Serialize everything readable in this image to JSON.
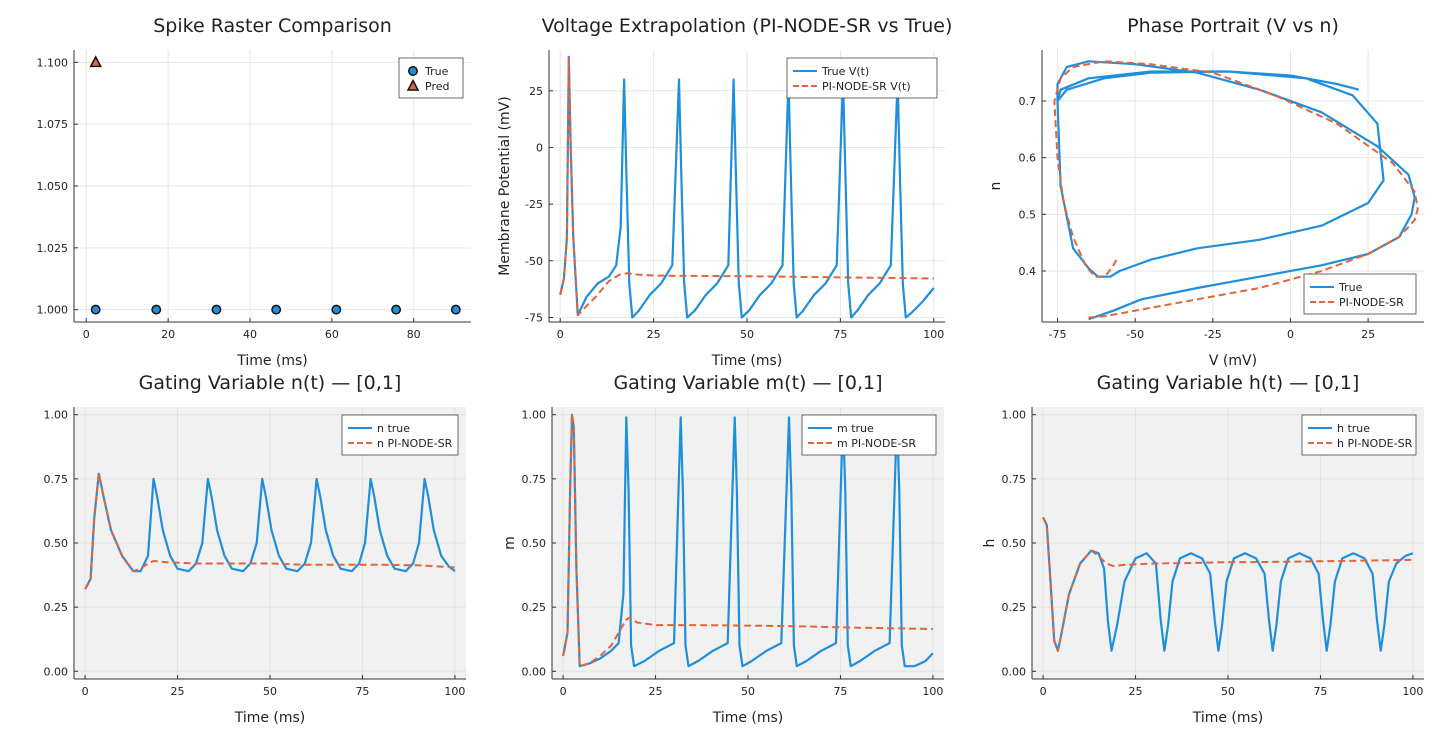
{
  "colors": {
    "true": "#1f8fdc",
    "pred": "#e0643e",
    "shade": "#f1f1f1",
    "grid": "#e6e6e6",
    "axis": "#333333"
  },
  "chart_data": [
    {
      "id": "raster",
      "type": "scatter",
      "title": "Spike Raster Comparison",
      "xlabel": "Time (ms)",
      "ylabel": "",
      "xlim": [
        -3,
        94
      ],
      "ylim": [
        0.995,
        1.105
      ],
      "xticks": [
        0,
        20,
        40,
        60,
        80
      ],
      "yticks": [
        1.0,
        1.025,
        1.05,
        1.075,
        1.1
      ],
      "ytick_labels": [
        "1.000",
        "1.025",
        "1.050",
        "1.075",
        "1.100"
      ],
      "grid": true,
      "legend": "top-right",
      "series": [
        {
          "name": "True",
          "marker": "circle",
          "color": "true",
          "x": [
            2.3,
            17.1,
            31.8,
            46.4,
            61.1,
            75.7,
            90.3
          ],
          "y": [
            1,
            1,
            1,
            1,
            1,
            1,
            1
          ]
        },
        {
          "name": "Pred",
          "marker": "triangle",
          "color": "pred",
          "x": [
            2.3
          ],
          "y": [
            1.1
          ]
        }
      ]
    },
    {
      "id": "voltage",
      "type": "line",
      "title": "Voltage Extrapolation (PI-NODE-SR vs True)",
      "xlabel": "Time (ms)",
      "ylabel": "Membrane Potential (mV)",
      "xlim": [
        -3,
        103
      ],
      "ylim": [
        -77,
        43
      ],
      "xticks": [
        0,
        25,
        50,
        75,
        100
      ],
      "yticks": [
        -75,
        -50,
        -25,
        0,
        25
      ],
      "grid": true,
      "legend": "top-right",
      "series": [
        {
          "name": "True V(t)",
          "style": "solid",
          "color": "true",
          "x": [
            0,
            1,
            1.8,
            2.3,
            2.8,
            3.5,
            4.7,
            7,
            10,
            13,
            15,
            16.2,
            17.1,
            17.7,
            18.5,
            19.3,
            21,
            24,
            27,
            30,
            31.8,
            32.4,
            33.2,
            34,
            36,
            39,
            42,
            45,
            46.4,
            47,
            47.8,
            48.6,
            50.5,
            53.5,
            56.5,
            59.5,
            61.1,
            61.7,
            62.5,
            63.3,
            65,
            68,
            71,
            74,
            75.7,
            76.3,
            77.1,
            77.9,
            79.5,
            82.5,
            85.5,
            88.5,
            90.3,
            90.9,
            91.7,
            92.5,
            94,
            97,
            100
          ],
          "y": [
            -65,
            -58,
            -40,
            40,
            0,
            -40,
            -74,
            -66,
            -60,
            -57,
            -52,
            -35,
            30,
            -10,
            -60,
            -75,
            -72,
            -65,
            -60,
            -52,
            30,
            -10,
            -60,
            -75,
            -72,
            -65,
            -60,
            -52,
            30,
            -10,
            -60,
            -75,
            -72,
            -65,
            -60,
            -52,
            30,
            -10,
            -60,
            -75,
            -72,
            -65,
            -60,
            -52,
            30,
            -10,
            -60,
            -75,
            -72,
            -65,
            -60,
            -52,
            30,
            -10,
            -60,
            -75,
            -73,
            -68,
            -62
          ]
        },
        {
          "name": "PI-NODE-SR V(t)",
          "style": "dashed",
          "color": "pred",
          "x": [
            0,
            1,
            1.8,
            2.3,
            2.8,
            3.5,
            4.7,
            7,
            10,
            13,
            16,
            18,
            20,
            25,
            30,
            40,
            50,
            60,
            70,
            80,
            90,
            100
          ],
          "y": [
            -65,
            -58,
            -40,
            40,
            0,
            -40,
            -74,
            -70,
            -65,
            -59,
            -56,
            -55.5,
            -56,
            -56.5,
            -56.6,
            -56.7,
            -56.8,
            -57,
            -57.2,
            -57.4,
            -57.6,
            -57.8
          ]
        }
      ]
    },
    {
      "id": "phase",
      "type": "line",
      "title": "Phase Portrait (V vs n)",
      "xlabel": "V (mV)",
      "ylabel": "n",
      "xlim": [
        -80,
        43
      ],
      "ylim": [
        0.31,
        0.79
      ],
      "xticks": [
        -75,
        -50,
        -25,
        0,
        25
      ],
      "yticks": [
        0.4,
        0.5,
        0.6,
        0.7
      ],
      "grid": true,
      "legend": "bottom-right",
      "series": [
        {
          "name": "True",
          "style": "solid",
          "color": "true",
          "x": [
            -65,
            -57,
            -48,
            -30,
            -10,
            10,
            25,
            35,
            39,
            40,
            38,
            28,
            10,
            -10,
            -30,
            -50,
            -65,
            -72,
            -75,
            -75,
            -72,
            -60,
            -45,
            -20,
            5,
            20,
            28,
            30,
            25,
            10,
            -10,
            -30,
            -45,
            -55,
            -58,
            -60,
            -62,
            -65,
            -70,
            -74,
            -75,
            -74,
            -65,
            -45,
            -20,
            0,
            15,
            22
          ],
          "y": [
            0.315,
            0.33,
            0.35,
            0.37,
            0.39,
            0.41,
            0.43,
            0.46,
            0.5,
            0.53,
            0.57,
            0.62,
            0.68,
            0.72,
            0.75,
            0.765,
            0.77,
            0.76,
            0.73,
            0.7,
            0.72,
            0.74,
            0.75,
            0.752,
            0.74,
            0.71,
            0.66,
            0.56,
            0.52,
            0.48,
            0.455,
            0.44,
            0.42,
            0.4,
            0.39,
            0.39,
            0.39,
            0.405,
            0.44,
            0.55,
            0.7,
            0.72,
            0.74,
            0.752,
            0.752,
            0.745,
            0.73,
            0.72
          ]
        },
        {
          "name": "PI-NODE-SR",
          "style": "dashed",
          "color": "pred",
          "x": [
            -65,
            -60,
            -50,
            -30,
            -10,
            10,
            25,
            35,
            40,
            41,
            40,
            33,
            15,
            -5,
            -25,
            -45,
            -60,
            -70,
            -74,
            -76,
            -75,
            -73,
            -70,
            -66,
            -63,
            -61,
            -59,
            -57,
            -55.5
          ],
          "y": [
            0.318,
            0.32,
            0.33,
            0.35,
            0.37,
            0.4,
            0.43,
            0.46,
            0.49,
            0.51,
            0.54,
            0.59,
            0.66,
            0.71,
            0.75,
            0.765,
            0.77,
            0.76,
            0.74,
            0.7,
            0.6,
            0.52,
            0.46,
            0.41,
            0.39,
            0.39,
            0.395,
            0.41,
            0.425
          ]
        }
      ]
    },
    {
      "id": "gate_n",
      "type": "line",
      "title": "Gating Variable n(t) — [0,1]",
      "xlabel": "Time (ms)",
      "ylabel": "",
      "xlim": [
        -3,
        103
      ],
      "ylim": [
        -0.03,
        1.03
      ],
      "xticks": [
        0,
        25,
        50,
        75,
        100
      ],
      "yticks": [
        0,
        0.25,
        0.5,
        0.75,
        1.0
      ],
      "ytick_labels": [
        "0.00",
        "0.25",
        "0.50",
        "0.75",
        "1.00"
      ],
      "grid": true,
      "shaded": true,
      "legend": "top-right",
      "series": [
        {
          "name": "n true",
          "style": "solid",
          "color": "true",
          "x": [
            0,
            1.5,
            2.5,
            3.7,
            5,
            7,
            10,
            13,
            15,
            17,
            18.5,
            19.5,
            21,
            23,
            25,
            28,
            30,
            31.7,
            33.2,
            34.2,
            35.7,
            37.7,
            39.7,
            42.7,
            44.7,
            46.4,
            47.9,
            48.9,
            50.4,
            52.4,
            54.4,
            57.4,
            59.4,
            61.1,
            62.6,
            63.6,
            65.1,
            67.1,
            69.1,
            72.1,
            74.1,
            75.7,
            77.2,
            78.2,
            79.7,
            81.7,
            83.7,
            86.7,
            88.7,
            90.3,
            91.8,
            92.8,
            94.3,
            96.3,
            98.3,
            100
          ],
          "y": [
            0.32,
            0.36,
            0.6,
            0.77,
            0.68,
            0.55,
            0.45,
            0.39,
            0.39,
            0.45,
            0.75,
            0.68,
            0.55,
            0.45,
            0.4,
            0.39,
            0.42,
            0.5,
            0.75,
            0.68,
            0.55,
            0.45,
            0.4,
            0.39,
            0.42,
            0.5,
            0.75,
            0.68,
            0.55,
            0.45,
            0.4,
            0.39,
            0.42,
            0.5,
            0.75,
            0.68,
            0.55,
            0.45,
            0.4,
            0.39,
            0.42,
            0.5,
            0.75,
            0.68,
            0.55,
            0.45,
            0.4,
            0.39,
            0.42,
            0.5,
            0.75,
            0.68,
            0.55,
            0.45,
            0.41,
            0.39
          ]
        },
        {
          "name": "n PI-NODE-SR",
          "style": "dashed",
          "color": "pred",
          "x": [
            0,
            1.5,
            2.5,
            3.7,
            5,
            7,
            10,
            13,
            15,
            17,
            18.5,
            22,
            30,
            40,
            50,
            60,
            70,
            80,
            90,
            100
          ],
          "y": [
            0.32,
            0.36,
            0.6,
            0.77,
            0.68,
            0.55,
            0.45,
            0.39,
            0.4,
            0.42,
            0.43,
            0.425,
            0.42,
            0.42,
            0.42,
            0.415,
            0.415,
            0.415,
            0.413,
            0.405
          ]
        }
      ]
    },
    {
      "id": "gate_m",
      "type": "line",
      "title": "Gating Variable m(t) — [0,1]",
      "xlabel": "Time (ms)",
      "ylabel": "m",
      "xlim": [
        -3,
        103
      ],
      "ylim": [
        -0.03,
        1.03
      ],
      "xticks": [
        0,
        25,
        50,
        75,
        100
      ],
      "yticks": [
        0,
        0.25,
        0.5,
        0.75,
        1.0
      ],
      "ytick_labels": [
        "0.00",
        "0.25",
        "0.50",
        "0.75",
        "1.00"
      ],
      "grid": true,
      "shaded": true,
      "legend": "top-right",
      "series": [
        {
          "name": "m true",
          "style": "solid",
          "color": "true",
          "x": [
            0,
            1.2,
            1.9,
            2.4,
            2.9,
            3.6,
            4.5,
            7,
            10,
            13,
            15,
            16.3,
            17.1,
            17.7,
            18.4,
            19.2,
            22,
            26,
            30,
            31.8,
            32.4,
            33.1,
            33.9,
            36.5,
            40.5,
            44.5,
            46.4,
            47,
            47.7,
            48.5,
            51,
            55,
            59,
            61.1,
            61.7,
            62.4,
            63.2,
            65.8,
            69.8,
            73.8,
            75.7,
            76.3,
            77,
            77.8,
            80.3,
            84.3,
            88.3,
            90.3,
            90.9,
            91.6,
            92.4,
            95,
            98,
            100
          ],
          "y": [
            0.06,
            0.15,
            0.7,
            1.0,
            0.95,
            0.4,
            0.02,
            0.03,
            0.05,
            0.08,
            0.11,
            0.3,
            0.99,
            0.7,
            0.1,
            0.02,
            0.04,
            0.08,
            0.11,
            0.99,
            0.7,
            0.1,
            0.02,
            0.04,
            0.08,
            0.11,
            0.99,
            0.7,
            0.1,
            0.02,
            0.04,
            0.08,
            0.11,
            0.99,
            0.7,
            0.1,
            0.02,
            0.04,
            0.08,
            0.11,
            0.99,
            0.7,
            0.1,
            0.02,
            0.04,
            0.08,
            0.11,
            0.99,
            0.7,
            0.1,
            0.02,
            0.02,
            0.04,
            0.07
          ]
        },
        {
          "name": "m PI-NODE-SR",
          "style": "dashed",
          "color": "pred",
          "x": [
            0,
            1.2,
            1.9,
            2.4,
            2.9,
            3.6,
            4.5,
            7,
            10,
            13,
            15,
            17,
            18,
            20,
            25,
            35,
            50,
            65,
            80,
            100
          ],
          "y": [
            0.06,
            0.15,
            0.7,
            1.0,
            0.95,
            0.4,
            0.02,
            0.03,
            0.06,
            0.1,
            0.15,
            0.2,
            0.21,
            0.19,
            0.18,
            0.18,
            0.178,
            0.175,
            0.17,
            0.165
          ]
        }
      ]
    },
    {
      "id": "gate_h",
      "type": "line",
      "title": "Gating Variable h(t) — [0,1]",
      "xlabel": "Time (ms)",
      "ylabel": "h",
      "xlim": [
        -3,
        103
      ],
      "ylim": [
        -0.03,
        1.03
      ],
      "xticks": [
        0,
        25,
        50,
        75,
        100
      ],
      "yticks": [
        0,
        0.25,
        0.5,
        0.75,
        1.0
      ],
      "ytick_labels": [
        "0.00",
        "0.25",
        "0.50",
        "0.75",
        "1.00"
      ],
      "grid": true,
      "shaded": true,
      "legend": "top-right",
      "series": [
        {
          "name": "h true",
          "style": "solid",
          "color": "true",
          "x": [
            0,
            1,
            2,
            3,
            4,
            5,
            7,
            10,
            13,
            15,
            16.5,
            17.5,
            18.5,
            20,
            22,
            25,
            28,
            30.5,
            31.8,
            32.8,
            33.8,
            35,
            37,
            40,
            43,
            45.2,
            46.4,
            47.4,
            48.4,
            49.6,
            51.6,
            54.6,
            57.6,
            59.9,
            61.1,
            62.1,
            63.1,
            64.3,
            66.3,
            69.3,
            72.3,
            74.5,
            75.7,
            76.7,
            77.7,
            78.9,
            80.9,
            83.9,
            86.9,
            89.1,
            90.3,
            91.3,
            92.3,
            93.5,
            95.5,
            98,
            100
          ],
          "y": [
            0.6,
            0.57,
            0.35,
            0.12,
            0.08,
            0.15,
            0.3,
            0.42,
            0.47,
            0.46,
            0.4,
            0.2,
            0.08,
            0.18,
            0.35,
            0.44,
            0.46,
            0.42,
            0.2,
            0.08,
            0.18,
            0.35,
            0.44,
            0.46,
            0.44,
            0.38,
            0.2,
            0.08,
            0.18,
            0.35,
            0.44,
            0.46,
            0.44,
            0.38,
            0.2,
            0.08,
            0.18,
            0.35,
            0.44,
            0.46,
            0.44,
            0.38,
            0.2,
            0.08,
            0.18,
            0.35,
            0.44,
            0.46,
            0.44,
            0.38,
            0.2,
            0.08,
            0.18,
            0.35,
            0.42,
            0.45,
            0.46
          ]
        },
        {
          "name": "h PI-NODE-SR",
          "style": "dashed",
          "color": "pred",
          "x": [
            0,
            1,
            2,
            3,
            4,
            5,
            7,
            10,
            13,
            15,
            17,
            19,
            22,
            30,
            40,
            50,
            60,
            70,
            80,
            90,
            100
          ],
          "y": [
            0.6,
            0.57,
            0.35,
            0.12,
            0.08,
            0.15,
            0.3,
            0.42,
            0.47,
            0.45,
            0.42,
            0.41,
            0.415,
            0.42,
            0.422,
            0.425,
            0.426,
            0.428,
            0.43,
            0.432,
            0.434
          ]
        }
      ]
    }
  ]
}
